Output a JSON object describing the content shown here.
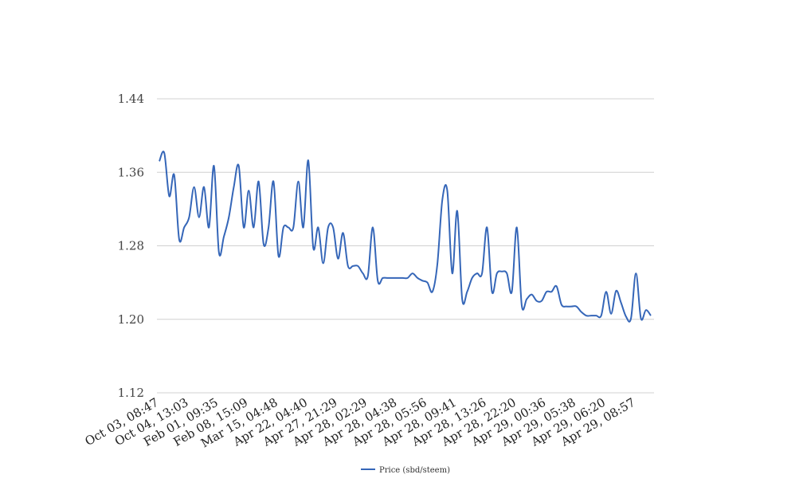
{
  "chart_data": {
    "type": "line",
    "title": "",
    "xlabel": "",
    "ylabel": "",
    "ylim": [
      1.12,
      1.44
    ],
    "yticks": [
      "1.12",
      "1.20",
      "1.28",
      "1.36",
      "1.44"
    ],
    "xticklabels": [
      "Oct 03, 08:47",
      "Oct 04, 13:03",
      "Feb 01, 09:35",
      "Feb 08, 15:09",
      "Mar 15, 04:48",
      "Apr 22, 04:40",
      "Apr 27, 21:29",
      "Apr 28, 02:29",
      "Apr 28, 04:38",
      "Apr 28, 05:56",
      "Apr 28, 09:41",
      "Apr 28, 13:26",
      "Apr 28, 22:20",
      "Apr 29, 00:36",
      "Apr 29, 05:38",
      "Apr 29, 06:20",
      "Apr 29, 08:57"
    ],
    "grid": true,
    "legend_position": "bottom-center",
    "line_color": "#3566b8",
    "series": [
      {
        "name": "Price (sbd/steem)",
        "values": [
          1.372,
          1.381,
          1.334,
          1.357,
          1.287,
          1.3,
          1.311,
          1.344,
          1.311,
          1.344,
          1.3,
          1.367,
          1.273,
          1.29,
          1.311,
          1.344,
          1.367,
          1.3,
          1.34,
          1.3,
          1.35,
          1.282,
          1.3,
          1.35,
          1.269,
          1.3,
          1.3,
          1.3,
          1.35,
          1.3,
          1.373,
          1.278,
          1.3,
          1.261,
          1.3,
          1.3,
          1.266,
          1.294,
          1.258,
          1.258,
          1.258,
          1.25,
          1.247,
          1.3,
          1.242,
          1.245,
          1.245,
          1.245,
          1.245,
          1.245,
          1.245,
          1.25,
          1.245,
          1.242,
          1.24,
          1.23,
          1.26,
          1.33,
          1.34,
          1.25,
          1.318,
          1.222,
          1.23,
          1.245,
          1.25,
          1.25,
          1.3,
          1.23,
          1.25,
          1.252,
          1.25,
          1.23,
          1.3,
          1.215,
          1.222,
          1.227,
          1.22,
          1.22,
          1.23,
          1.23,
          1.236,
          1.216,
          1.214,
          1.214,
          1.214,
          1.208,
          1.204,
          1.204,
          1.204,
          1.204,
          1.23,
          1.206,
          1.231,
          1.218,
          1.203,
          1.201,
          1.25,
          1.201,
          1.21,
          1.204
        ]
      }
    ]
  }
}
